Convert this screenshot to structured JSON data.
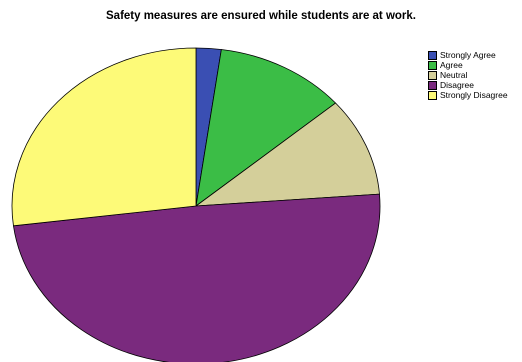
{
  "chart_data": {
    "type": "pie",
    "title": "Safety measures are ensured while students are at work.",
    "categories": [
      "Strongly Agree",
      "Agree",
      "Neutral",
      "Disagree",
      "Strongly Disagree"
    ],
    "values": [
      2.2,
      11.5,
      10.1,
      49.2,
      27.0
    ],
    "colors": [
      "#3a4fb3",
      "#3bbd46",
      "#d4cf9a",
      "#7a2a7e",
      "#fdfa78"
    ],
    "legend_position": "top-right"
  }
}
